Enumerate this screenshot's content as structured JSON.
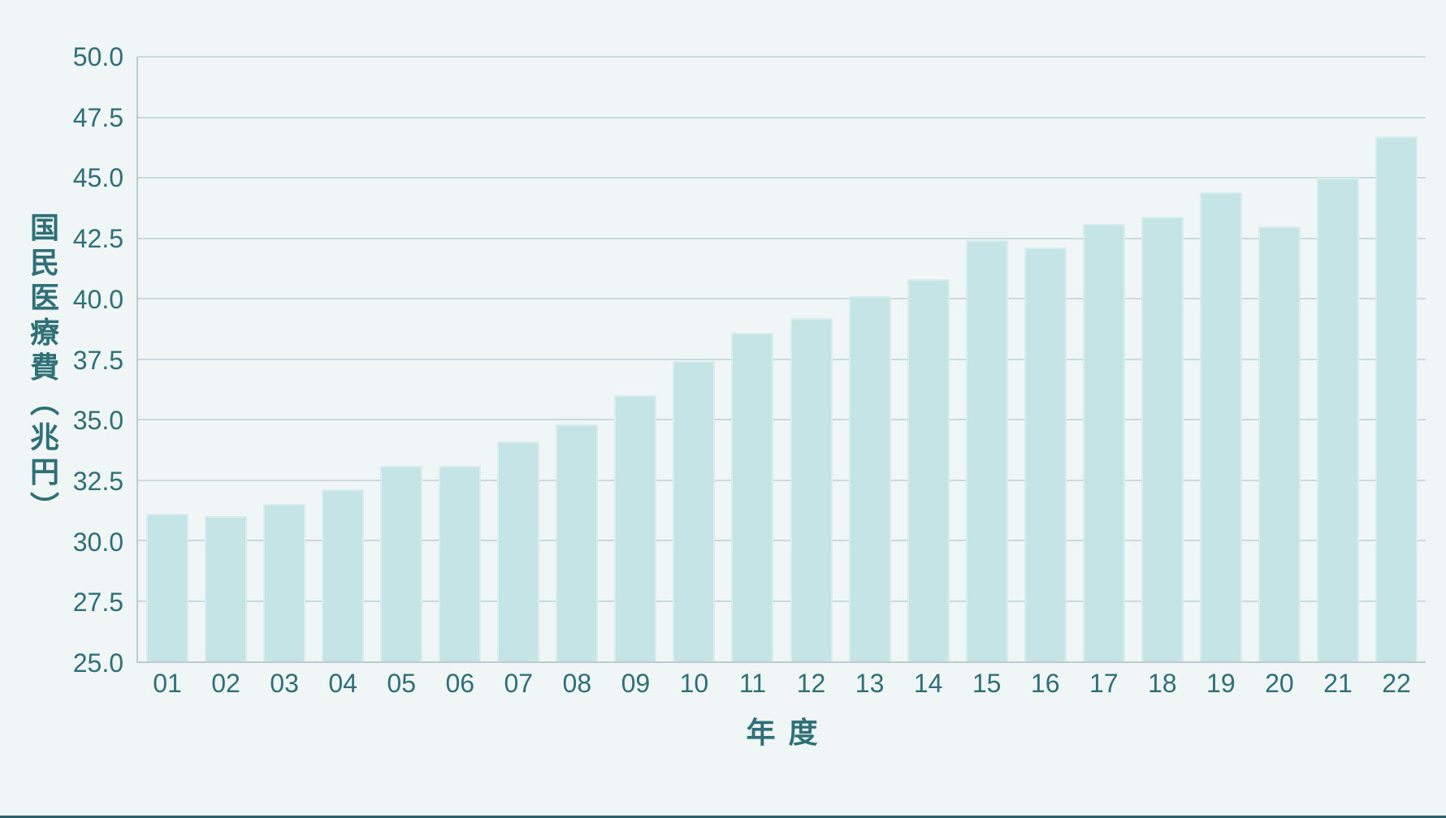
{
  "page": {
    "background_color": "#eff6f5",
    "bottom_strip_color": "#2d6169"
  },
  "chart_data": {
    "type": "bar",
    "title": "",
    "xlabel": "年度",
    "ylabel": "国民医療費（兆円）",
    "categories": [
      "01",
      "02",
      "03",
      "04",
      "05",
      "06",
      "07",
      "08",
      "09",
      "10",
      "11",
      "12",
      "13",
      "14",
      "15",
      "16",
      "17",
      "18",
      "19",
      "20",
      "21",
      "22"
    ],
    "values": [
      31.1,
      31.0,
      31.5,
      32.1,
      33.1,
      33.1,
      34.1,
      34.8,
      36.0,
      37.4,
      38.6,
      39.2,
      40.1,
      40.8,
      42.4,
      42.1,
      43.1,
      43.4,
      44.4,
      43.0,
      45.0,
      46.7
    ],
    "ylim": [
      25.0,
      50.0
    ],
    "y_ticks": [
      25.0,
      27.5,
      30.0,
      32.5,
      35.0,
      37.5,
      40.0,
      42.5,
      45.0,
      47.5,
      50.0
    ],
    "y_tick_labels": [
      "25.0",
      "27.5",
      "30.0",
      "32.5",
      "35.0",
      "37.5",
      "40.0",
      "42.5",
      "45.0",
      "47.5",
      "50.0"
    ],
    "grid": true,
    "legend": false,
    "gridline_color": "#c9dadb",
    "axis_line_color": "#bccbcd",
    "bar_color": "#c5e4e6",
    "text_color": "#2e6f78"
  }
}
